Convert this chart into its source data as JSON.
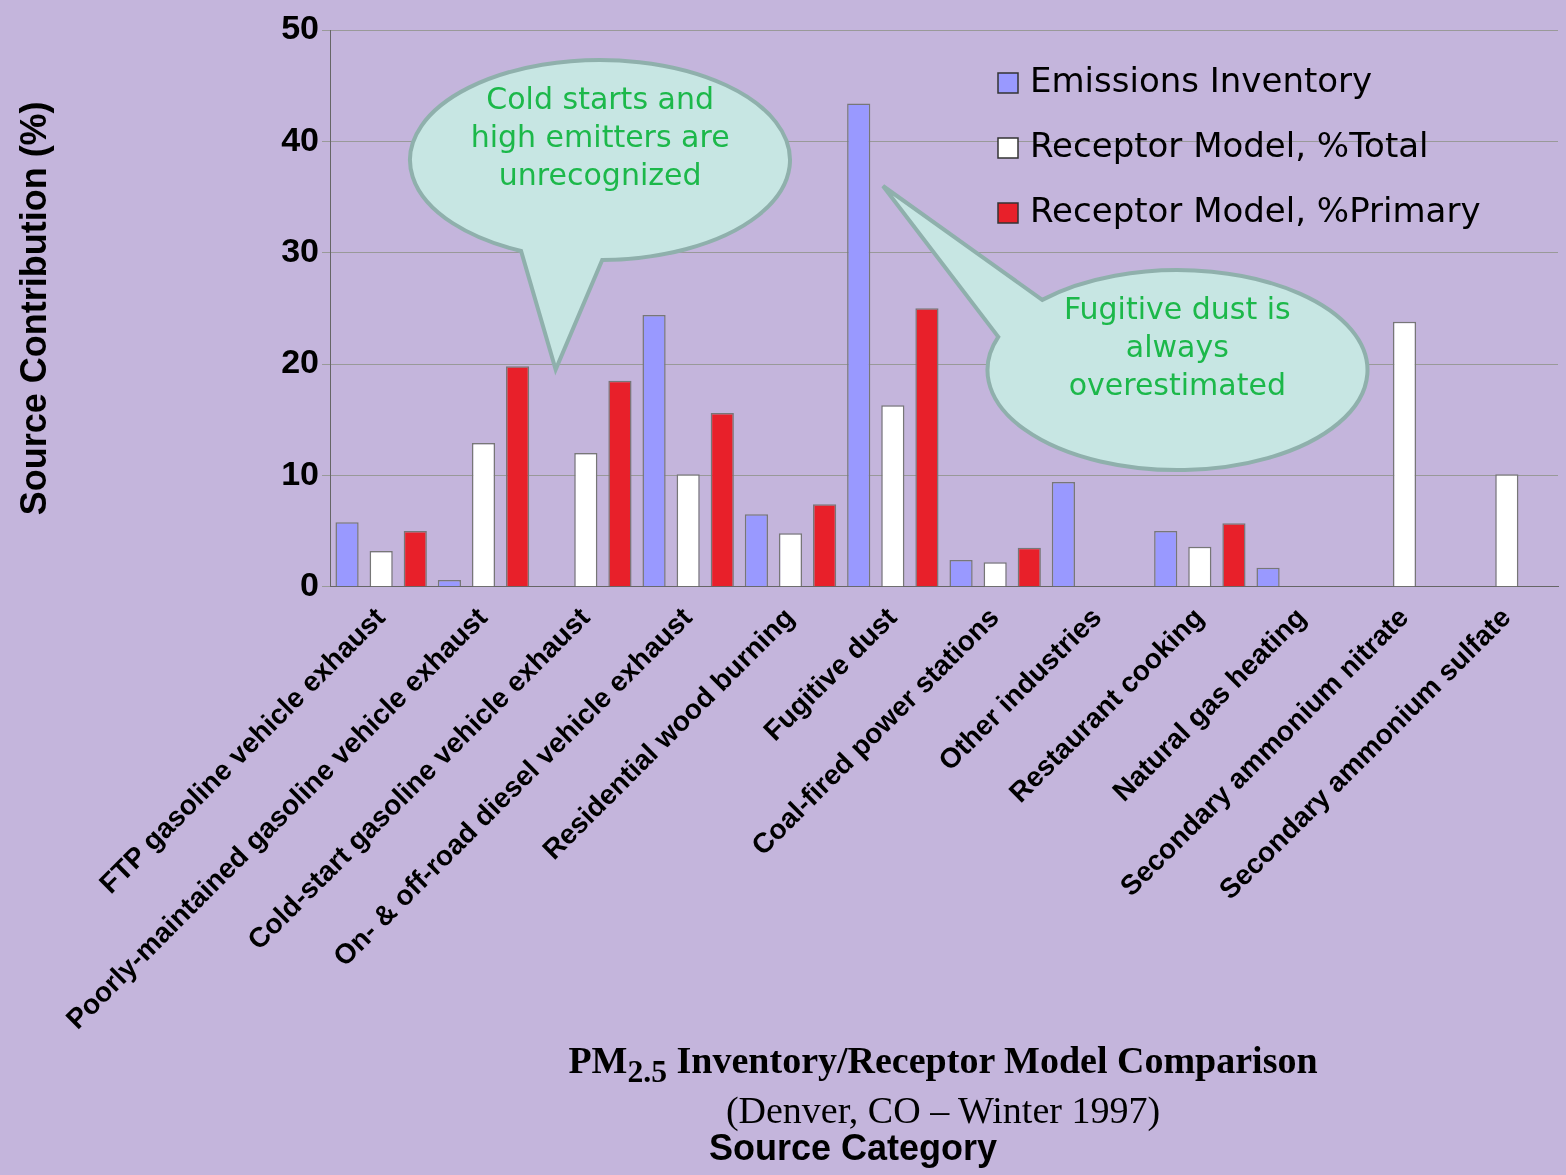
{
  "chart_data": {
    "type": "bar",
    "title": "PM$_{2.5}$ Inventory/Receptor Model Comparison",
    "subtitle": "(Denver, CO – Winter 1997)",
    "xlabel": "Source Category",
    "ylabel": "Source Contribution (%)",
    "categories": [
      "FTP gasoline vehicle exhaust",
      "Poorly-maintained gasoline vehicle exhaust",
      "Cold-start gasoline vehicle exhaust",
      "On- & off-road diesel vehicle exhaust",
      "Residential wood burning",
      "Fugitive dust",
      "Coal-fired power stations",
      "Other industries",
      "Restaurant cooking",
      "Natural gas heating",
      "Secondary ammonium nitrate",
      "Secondary ammonium sulfate"
    ],
    "series": [
      {
        "name": "Emissions Inventory",
        "color": "#9999ff",
        "values": [
          5.8,
          0.6,
          null,
          24.4,
          6.5,
          43.4,
          2.4,
          9.4,
          5.0,
          1.7,
          null,
          null
        ]
      },
      {
        "name": "Receptor Model, %Total",
        "color": "#ffffff",
        "values": [
          3.2,
          12.9,
          12.0,
          10.1,
          4.8,
          16.3,
          2.2,
          null,
          3.6,
          null,
          23.8,
          10.1
        ]
      },
      {
        "name": "Receptor Model, %Primary",
        "color": "#e8202a",
        "values": [
          5.0,
          19.8,
          18.5,
          15.6,
          7.4,
          25.0,
          3.5,
          null,
          5.7,
          null,
          null,
          null
        ]
      }
    ],
    "ylim": [
      0,
      50
    ],
    "yticks": [
      0,
      10,
      20,
      30,
      40,
      50
    ],
    "grid": "y",
    "legend": "top right",
    "annotations": [
      "Cold starts and high emitters are unrecognized",
      "Fugitive dust is always overestimated"
    ]
  }
}
